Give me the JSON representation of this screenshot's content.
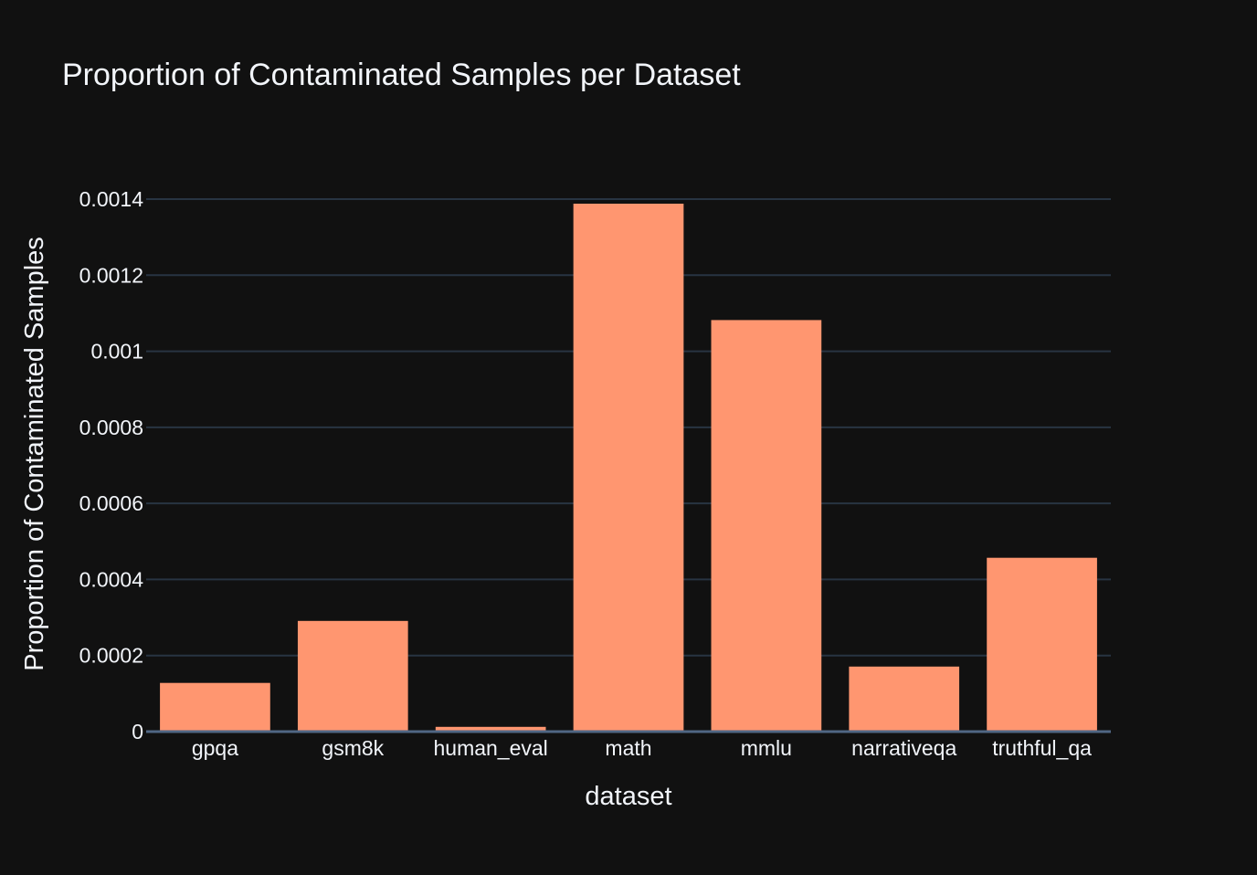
{
  "chart_data": {
    "type": "bar",
    "title": "Proportion of Contaminated Samples per Dataset",
    "xlabel": "dataset",
    "ylabel": "Proportion of Contaminated Samples",
    "categories": [
      "gpqa",
      "gsm8k",
      "human_eval",
      "math",
      "mmlu",
      "narrativeqa",
      "truthful_qa"
    ],
    "values": [
      0.000128,
      0.000291,
      1.25e-05,
      0.001388,
      0.001082,
      0.000171,
      0.000457
    ],
    "ylim": [
      0,
      0.0014
    ],
    "yticks": [
      0,
      0.0002,
      0.0004,
      0.0006,
      0.0008,
      0.001,
      0.0012,
      0.0014
    ],
    "ytick_labels": [
      "0",
      "0.0002",
      "0.0004",
      "0.0006",
      "0.0008",
      "0.001",
      "0.0012",
      "0.0014"
    ],
    "grid": true,
    "colors": {
      "background": "#111111",
      "bar": "#FF9670",
      "grid": "#283442",
      "text": "#f2f5fa",
      "zeroline": "#506784"
    }
  }
}
